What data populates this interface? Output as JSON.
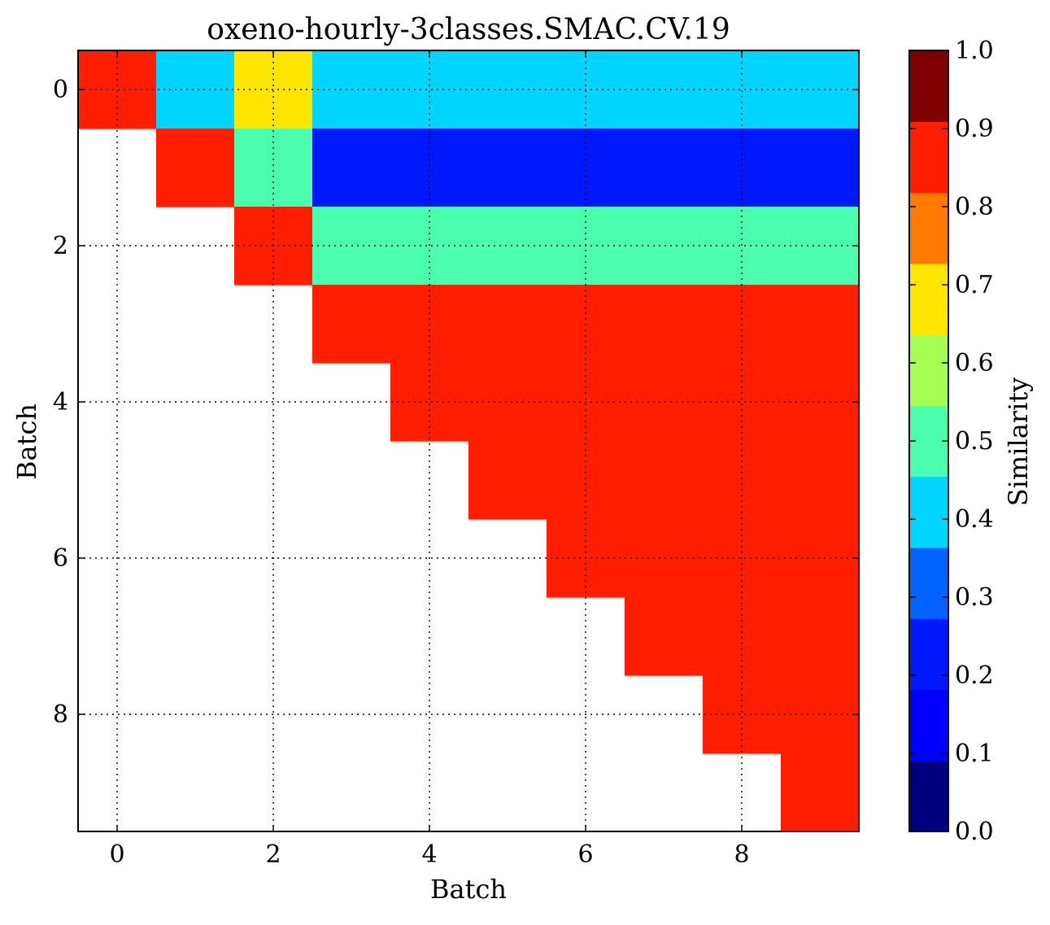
{
  "chart_data": {
    "type": "heatmap",
    "title": "oxeno-hourly-3classes.SMAC.CV.19",
    "xlabel": "Batch",
    "ylabel": "Batch",
    "x_ticks": [
      "0",
      "2",
      "4",
      "6",
      "8"
    ],
    "y_ticks": [
      "0",
      "2",
      "4",
      "6",
      "8"
    ],
    "xlim": [
      -0.5,
      9.5
    ],
    "ylim": [
      9.5,
      -0.5
    ],
    "grid": true,
    "colorbar": {
      "label": "Similarity",
      "range": [
        0.0,
        1.0
      ],
      "tick_labels": [
        "0.0",
        "0.1",
        "0.2",
        "0.3",
        "0.4",
        "0.5",
        "0.6",
        "0.7",
        "0.8",
        "0.9",
        "1.0"
      ],
      "bin_colors": [
        "#00007f",
        "#0000ff",
        "#0019ff",
        "#0062ff",
        "#00d5ff",
        "#4affad",
        "#a5ff52",
        "#ffe500",
        "#ff7a00",
        "#ff1e00",
        "#7f0000"
      ]
    },
    "matrix": [
      [
        0.95,
        0.45,
        0.75,
        0.45,
        0.45,
        0.45,
        0.45,
        0.45,
        0.45,
        0.45
      ],
      [
        null,
        0.95,
        0.55,
        0.25,
        0.25,
        0.25,
        0.25,
        0.25,
        0.25,
        0.25
      ],
      [
        null,
        null,
        0.95,
        0.55,
        0.55,
        0.55,
        0.55,
        0.55,
        0.55,
        0.55
      ],
      [
        null,
        null,
        null,
        0.95,
        0.95,
        0.95,
        0.95,
        0.95,
        0.95,
        0.95
      ],
      [
        null,
        null,
        null,
        null,
        0.95,
        0.95,
        0.95,
        0.95,
        0.95,
        0.95
      ],
      [
        null,
        null,
        null,
        null,
        null,
        0.95,
        0.95,
        0.95,
        0.95,
        0.95
      ],
      [
        null,
        null,
        null,
        null,
        null,
        null,
        0.95,
        0.95,
        0.95,
        0.95
      ],
      [
        null,
        null,
        null,
        null,
        null,
        null,
        null,
        0.95,
        0.95,
        0.95
      ],
      [
        null,
        null,
        null,
        null,
        null,
        null,
        null,
        null,
        0.95,
        0.95
      ],
      [
        null,
        null,
        null,
        null,
        null,
        null,
        null,
        null,
        null,
        0.95
      ]
    ]
  }
}
